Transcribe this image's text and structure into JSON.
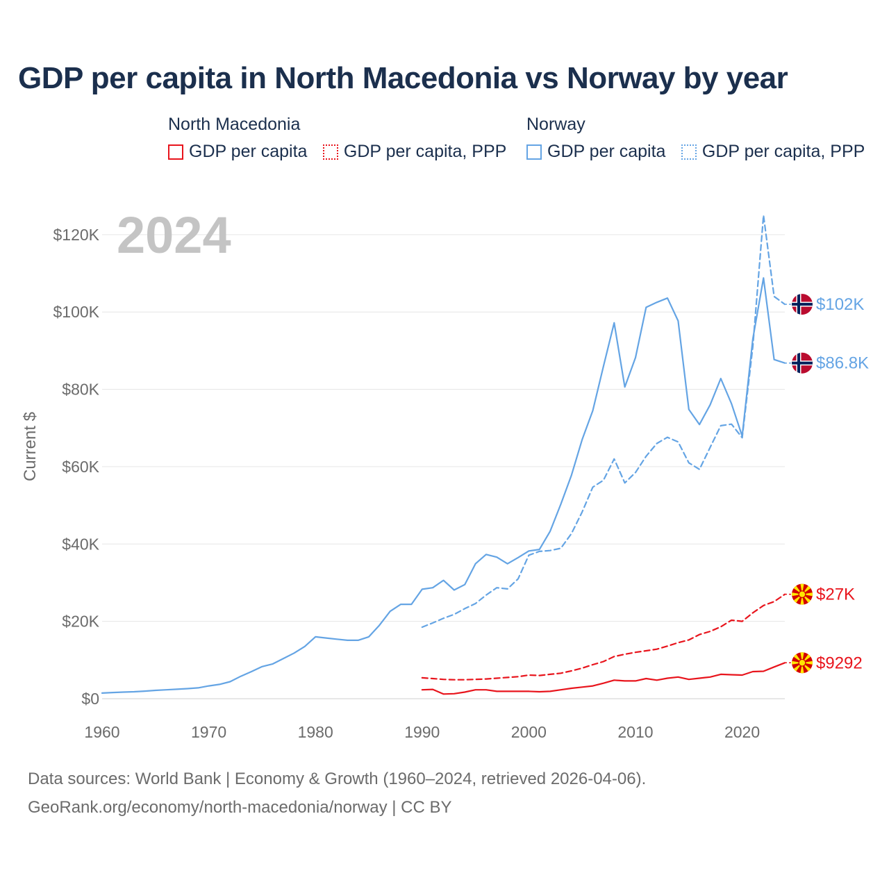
{
  "title": "GDP per capita in North Macedonia vs Norway by year",
  "legend": {
    "groups": [
      {
        "name": "North Macedonia",
        "items": [
          {
            "label": "GDP per capita",
            "style": "solid",
            "color": "#e8141c"
          },
          {
            "label": "GDP per capita, PPP",
            "style": "dotted",
            "color": "#e8141c"
          }
        ]
      },
      {
        "name": "Norway",
        "items": [
          {
            "label": "GDP per capita",
            "style": "solid",
            "color": "#64a4e4"
          },
          {
            "label": "GDP per capita, PPP",
            "style": "dotted",
            "color": "#64a4e4"
          }
        ]
      }
    ]
  },
  "chart_data": {
    "type": "line",
    "year_watermark": "2024",
    "ylabel": "Current $",
    "xlim": [
      1960,
      2024
    ],
    "ylim": [
      0,
      125000
    ],
    "x_ticks": [
      1960,
      1970,
      1980,
      1990,
      2000,
      2010,
      2020
    ],
    "y_ticks": [
      0,
      20000,
      40000,
      60000,
      80000,
      100000,
      120000
    ],
    "y_tick_labels": [
      "$0",
      "$20K",
      "$40K",
      "$60K",
      "$80K",
      "$100K",
      "$120K"
    ],
    "gridlines": true,
    "series": [
      {
        "name": "Norway GDP per capita",
        "country": "Norway",
        "color": "#64a4e4",
        "dash": "solid",
        "end_label": "$86.8K",
        "flag": "norway",
        "x": [
          1960,
          1961,
          1962,
          1963,
          1964,
          1965,
          1966,
          1967,
          1968,
          1969,
          1970,
          1971,
          1972,
          1973,
          1974,
          1975,
          1976,
          1977,
          1978,
          1979,
          1980,
          1981,
          1982,
          1983,
          1984,
          1985,
          1986,
          1987,
          1988,
          1989,
          1990,
          1991,
          1992,
          1993,
          1994,
          1995,
          1996,
          1997,
          1998,
          1999,
          2000,
          2001,
          2002,
          2003,
          2004,
          2005,
          2006,
          2007,
          2008,
          2009,
          2010,
          2011,
          2012,
          2013,
          2014,
          2015,
          2016,
          2017,
          2018,
          2019,
          2020,
          2021,
          2022,
          2023,
          2024
        ],
        "y": [
          1450,
          1600,
          1700,
          1800,
          1950,
          2150,
          2300,
          2450,
          2600,
          2800,
          3300,
          3700,
          4400,
          5800,
          7000,
          8300,
          9000,
          10400,
          11800,
          13500,
          16000,
          15700,
          15400,
          15100,
          15100,
          16000,
          19000,
          22600,
          24400,
          24400,
          28300,
          28700,
          30600,
          28100,
          29500,
          34900,
          37300,
          36600,
          34900,
          36500,
          38200,
          38600,
          43300,
          50300,
          57800,
          67000,
          74500,
          86000,
          97200,
          80600,
          88200,
          101200,
          102500,
          103600,
          97700,
          74800,
          70900,
          76000,
          82800,
          76300,
          67900,
          93000,
          108800,
          87700,
          86800
        ]
      },
      {
        "name": "Norway GDP per capita, PPP",
        "country": "Norway",
        "color": "#64a4e4",
        "dash": "dotted",
        "end_label": "$102K",
        "flag": "norway",
        "x": [
          1990,
          1991,
          1992,
          1993,
          1994,
          1995,
          1996,
          1997,
          1998,
          1999,
          2000,
          2001,
          2002,
          2003,
          2004,
          2005,
          2006,
          2007,
          2008,
          2009,
          2010,
          2011,
          2012,
          2013,
          2014,
          2015,
          2016,
          2017,
          2018,
          2019,
          2020,
          2021,
          2022,
          2023,
          2024
        ],
        "y": [
          18500,
          19600,
          20800,
          21800,
          23300,
          24600,
          26800,
          28700,
          28400,
          31000,
          37100,
          38100,
          38300,
          38900,
          42700,
          48300,
          54700,
          56500,
          62000,
          55800,
          58500,
          62700,
          66000,
          67600,
          66400,
          61000,
          59300,
          65000,
          70600,
          71000,
          67500,
          91000,
          125000,
          104000,
          102000
        ]
      },
      {
        "name": "North Macedonia GDP per capita, PPP",
        "country": "North Macedonia",
        "color": "#e8141c",
        "dash": "dotted",
        "end_label": "$27K",
        "flag": "north-macedonia",
        "x": [
          1990,
          1991,
          1992,
          1993,
          1994,
          1995,
          1996,
          1997,
          1998,
          1999,
          2000,
          2001,
          2002,
          2003,
          2004,
          2005,
          2006,
          2007,
          2008,
          2009,
          2010,
          2011,
          2012,
          2013,
          2014,
          2015,
          2016,
          2017,
          2018,
          2019,
          2020,
          2021,
          2022,
          2023,
          2024
        ],
        "y": [
          5400,
          5200,
          5000,
          4900,
          4900,
          5000,
          5100,
          5300,
          5500,
          5700,
          6100,
          6000,
          6300,
          6600,
          7200,
          7900,
          8800,
          9600,
          10900,
          11500,
          12000,
          12400,
          12800,
          13600,
          14500,
          15200,
          16600,
          17400,
          18600,
          20300,
          20000,
          22200,
          24100,
          25100,
          27000
        ]
      },
      {
        "name": "North Macedonia GDP per capita",
        "country": "North Macedonia",
        "color": "#e8141c",
        "dash": "solid",
        "end_label": "$9292",
        "flag": "north-macedonia",
        "x": [
          1990,
          1991,
          1992,
          1993,
          1994,
          1995,
          1996,
          1997,
          1998,
          1999,
          2000,
          2001,
          2002,
          2003,
          2004,
          2005,
          2006,
          2007,
          2008,
          2009,
          2010,
          2011,
          2012,
          2013,
          2014,
          2015,
          2016,
          2017,
          2018,
          2019,
          2020,
          2021,
          2022,
          2023,
          2024
        ],
        "y": [
          2300,
          2400,
          1200,
          1300,
          1700,
          2300,
          2300,
          1900,
          1900,
          1900,
          1900,
          1800,
          1900,
          2300,
          2700,
          3000,
          3300,
          4000,
          4800,
          4600,
          4600,
          5200,
          4800,
          5300,
          5600,
          5000,
          5300,
          5600,
          6300,
          6200,
          6100,
          7000,
          7100,
          8200,
          9292
        ]
      }
    ]
  },
  "footer": {
    "line1": "Data sources: World Bank | Economy & Growth (1960–2024, retrieved 2026-04-06).",
    "line2": "GeoRank.org/economy/north-macedonia/norway | CC BY"
  }
}
